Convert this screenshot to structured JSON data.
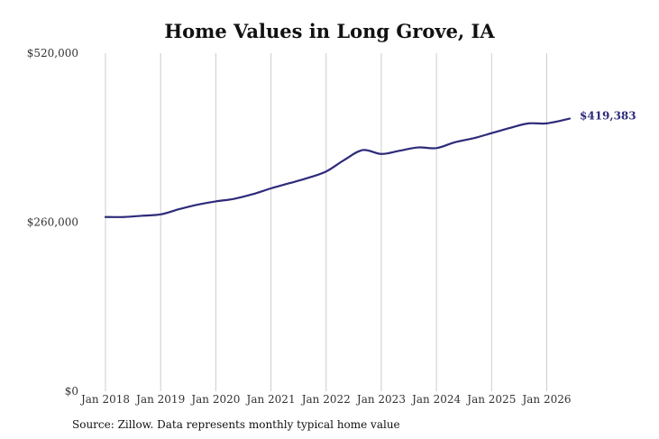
{
  "chart_data": {
    "type": "line",
    "title": "Home Values in Long Grove, IA",
    "xlabel": "",
    "ylabel": "",
    "ylim": [
      0,
      520000
    ],
    "y_ticks": [
      "$0",
      "$260,000",
      "$520,000"
    ],
    "y_tick_values": [
      0,
      260000,
      520000
    ],
    "x_ticks": [
      "Jan 2018",
      "Jan 2019",
      "Jan 2020",
      "Jan 2021",
      "Jan 2022",
      "Jan 2023",
      "Jan 2024",
      "Jan 2025",
      "Jan 2026"
    ],
    "x_tick_dates": [
      "2018-01",
      "2019-01",
      "2020-01",
      "2021-01",
      "2022-01",
      "2023-01",
      "2024-01",
      "2025-01",
      "2026-01"
    ],
    "xlim": [
      "2018-01",
      "2026-06"
    ],
    "grid": "vertical",
    "line_color": "#2e2b7a",
    "end_label": "$419,383",
    "series": [
      {
        "x": [
          "2018-01",
          "2018-05",
          "2018-09",
          "2019-01",
          "2019-05",
          "2019-09",
          "2020-01",
          "2020-05",
          "2020-09",
          "2021-01",
          "2021-05",
          "2021-09",
          "2022-01",
          "2022-05",
          "2022-09",
          "2023-01",
          "2023-05",
          "2023-09",
          "2024-01",
          "2024-05",
          "2024-09",
          "2025-01",
          "2025-05",
          "2025-09",
          "2026-01",
          "2026-06"
        ],
        "values": [
          268000,
          268000,
          270000,
          272000,
          280000,
          287000,
          292000,
          296000,
          303000,
          312000,
          320000,
          328000,
          338000,
          356000,
          371000,
          365000,
          370000,
          375000,
          374000,
          383000,
          389000,
          397000,
          405000,
          412000,
          412000,
          419383
        ]
      }
    ]
  },
  "footer": {
    "source": "Source: Zillow. Data represents monthly typical home value"
  }
}
